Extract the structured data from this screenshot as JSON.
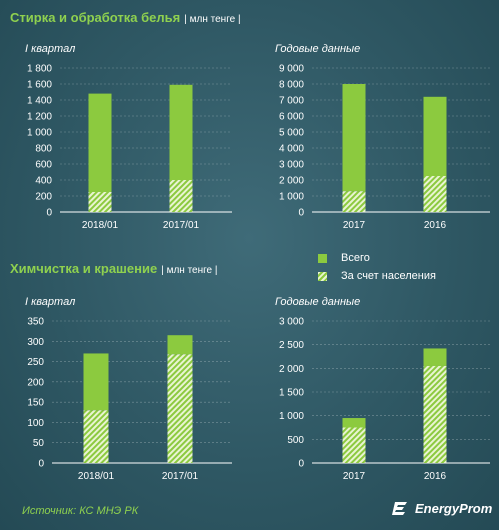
{
  "header": {
    "title_top": "Стирка и обработка белья",
    "title_bottom": "Химчистка и крашение",
    "unit": "| млн тенге |"
  },
  "legend": {
    "total": "Всего",
    "population": "За счет населения"
  },
  "footer": {
    "source": "Источник: КС МНЭ РК",
    "logo": "EnergyProm"
  },
  "colors": {
    "total": "#8cca3f",
    "population_stripe": "#e9f4d2",
    "title_green": "#8fd14f"
  },
  "chart_data": [
    {
      "id": "laundry_quarter",
      "type": "bar",
      "subtitle": "I квартал",
      "categories": [
        "2018/01",
        "2017/01"
      ],
      "series": [
        {
          "name": "Всего",
          "values": [
            1480,
            1590
          ]
        },
        {
          "name": "За счет населения",
          "values": [
            250,
            400
          ]
        }
      ],
      "ylim": [
        0,
        1800
      ],
      "yticks": [
        0,
        200,
        400,
        600,
        800,
        1000,
        1200,
        1400,
        1600,
        1800
      ],
      "ytick_labels": [
        "0",
        "200",
        "400",
        "600",
        "800",
        "1 000",
        "1 200",
        "1 400",
        "1 600",
        "1 800"
      ]
    },
    {
      "id": "laundry_annual",
      "type": "bar",
      "subtitle": "Годовые данные",
      "categories": [
        "2017",
        "2016"
      ],
      "series": [
        {
          "name": "Всего",
          "values": [
            8000,
            7200
          ]
        },
        {
          "name": "За счет населения",
          "values": [
            1300,
            2250
          ]
        }
      ],
      "ylim": [
        0,
        9000
      ],
      "yticks": [
        0,
        1000,
        2000,
        3000,
        4000,
        5000,
        6000,
        7000,
        8000,
        9000
      ],
      "ytick_labels": [
        "0",
        "1 000",
        "2 000",
        "3 000",
        "4 000",
        "5 000",
        "6 000",
        "7 000",
        "8 000",
        "9 000"
      ]
    },
    {
      "id": "drycleaning_quarter",
      "type": "bar",
      "subtitle": "I квартал",
      "categories": [
        "2018/01",
        "2017/01"
      ],
      "series": [
        {
          "name": "Всего",
          "values": [
            270,
            315
          ]
        },
        {
          "name": "За счет населения",
          "values": [
            130,
            268
          ]
        }
      ],
      "ylim": [
        0,
        350
      ],
      "yticks": [
        0,
        50,
        100,
        150,
        200,
        250,
        300,
        350
      ],
      "ytick_labels": [
        "0",
        "50",
        "100",
        "150",
        "200",
        "250",
        "300",
        "350"
      ]
    },
    {
      "id": "drycleaning_annual",
      "type": "bar",
      "subtitle": "Годовые данные",
      "categories": [
        "2017",
        "2016"
      ],
      "series": [
        {
          "name": "Всего",
          "values": [
            950,
            2420
          ]
        },
        {
          "name": "За счет населения",
          "values": [
            750,
            2050
          ]
        }
      ],
      "ylim": [
        0,
        3000
      ],
      "yticks": [
        0,
        500,
        1000,
        1500,
        2000,
        2500,
        3000
      ],
      "ytick_labels": [
        "0",
        "500",
        "1 000",
        "1 500",
        "2 000",
        "2 500",
        "3 000"
      ]
    }
  ]
}
